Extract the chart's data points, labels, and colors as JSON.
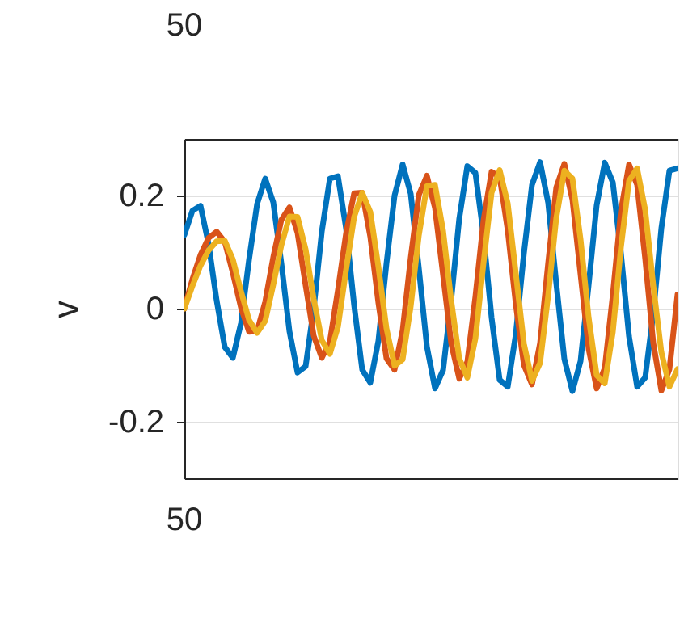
{
  "chart_data": {
    "type": "line",
    "ylabel": "v",
    "annotations": [
      "50",
      "50"
    ],
    "categories": [
      null,
      null,
      null,
      null,
      null,
      null,
      null,
      null,
      null,
      null,
      null,
      null,
      null,
      null,
      null,
      null,
      null,
      null,
      null,
      null,
      null,
      null,
      null,
      null,
      null,
      null,
      null,
      null,
      null,
      null,
      null,
      null,
      null,
      null,
      null,
      null,
      null,
      null,
      null,
      null,
      null,
      null,
      null,
      null,
      null,
      null,
      null,
      null,
      null,
      null,
      null,
      null,
      null,
      null,
      null,
      null,
      null,
      null,
      null,
      null,
      null,
      null
    ],
    "ylim": [
      -0.3,
      0.3
    ],
    "yticks": [
      -0.2,
      0,
      0.2
    ],
    "grid": "y",
    "marker": "none",
    "line_style": "solid",
    "series": [
      {
        "color": "#0072bd",
        "values": [
          0.13,
          0.173,
          0.182,
          0.114,
          0.014,
          -0.068,
          -0.087,
          -0.026,
          0.086,
          0.185,
          0.23,
          0.188,
          0.08,
          -0.04,
          -0.113,
          -0.102,
          0.0,
          0.136,
          0.23,
          0.234,
          0.142,
          0.006,
          -0.108,
          -0.131,
          -0.057,
          0.08,
          0.2,
          0.255,
          0.203,
          0.072,
          -0.067,
          -0.141,
          -0.109,
          0.014,
          0.159,
          0.252,
          0.24,
          0.13,
          -0.016,
          -0.126,
          -0.138,
          -0.045,
          0.098,
          0.219,
          0.259,
          0.187,
          0.045,
          -0.089,
          -0.146,
          -0.093,
          0.041,
          0.183,
          0.258,
          0.223,
          0.098,
          -0.049,
          -0.138,
          -0.122,
          -0.008,
          0.142,
          0.244,
          0.248
        ]
      },
      {
        "color": "#d95319",
        "values": [
          0.0,
          0.052,
          0.095,
          0.125,
          0.136,
          0.118,
          0.063,
          0.002,
          -0.041,
          -0.04,
          0.012,
          0.091,
          0.157,
          0.179,
          0.134,
          0.041,
          -0.048,
          -0.087,
          -0.058,
          0.033,
          0.133,
          0.204,
          0.205,
          0.127,
          0.01,
          -0.088,
          -0.108,
          -0.038,
          0.09,
          0.201,
          0.235,
          0.178,
          0.059,
          -0.061,
          -0.124,
          -0.094,
          0.021,
          0.156,
          0.242,
          0.233,
          0.138,
          0.007,
          -0.1,
          -0.134,
          -0.061,
          0.081,
          0.214,
          0.256,
          0.193,
          0.061,
          -0.071,
          -0.141,
          -0.105,
          0.025,
          0.173,
          0.255,
          0.219,
          0.088,
          -0.061,
          -0.145,
          -0.107,
          0.025
        ]
      },
      {
        "color": "#edb120",
        "values": [
          0.0,
          0.04,
          0.076,
          0.103,
          0.119,
          0.12,
          0.087,
          0.031,
          -0.02,
          -0.043,
          -0.022,
          0.042,
          0.112,
          0.163,
          0.162,
          0.105,
          0.017,
          -0.056,
          -0.08,
          -0.032,
          0.068,
          0.162,
          0.205,
          0.171,
          0.074,
          -0.035,
          -0.101,
          -0.09,
          0.004,
          0.129,
          0.217,
          0.219,
          0.138,
          0.015,
          -0.088,
          -0.122,
          -0.053,
          0.08,
          0.205,
          0.245,
          0.186,
          0.062,
          -0.062,
          -0.128,
          -0.096,
          0.023,
          0.16,
          0.244,
          0.23,
          0.123,
          -0.015,
          -0.118,
          -0.132,
          -0.041,
          0.108,
          0.226,
          0.248,
          0.175,
          0.041,
          -0.077,
          -0.138,
          -0.107
        ]
      }
    ]
  }
}
